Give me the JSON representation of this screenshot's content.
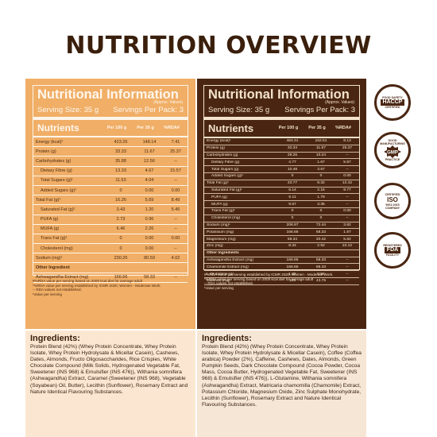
{
  "title": "NUTRITION OVERVIEW",
  "left": {
    "heading": "Nutritional Information",
    "approx": "(Approx. Values)",
    "serving_size": "Serving Size: 35 g",
    "servings": "Servings Per Pack: 3",
    "nutrients_label": "Nutrients",
    "col1": "Per 100 g",
    "col2": "Per 35 g",
    "col3": "%RDA#",
    "rows": [
      {
        "label": "Energy (kcal)¹",
        "v1": "423.26",
        "v2": "148.14",
        "v3": "7.41",
        "indent": false,
        "section": false
      },
      {
        "label": "Protein (g)",
        "v1": "33.33",
        "v2": "11.67",
        "v3": "25.37",
        "indent": false,
        "section": false
      },
      {
        "label": "Carbohydrates (g)",
        "v1": "35.88",
        "v2": "12.56",
        "v3": "--",
        "indent": false,
        "section": false
      },
      {
        "label": "Dietary Fibre (g)",
        "v1": "13.33",
        "v2": "4.67",
        "v3": "15.57",
        "indent": true,
        "section": false
      },
      {
        "label": "Total Sugars (g)¹",
        "v1": "11.53",
        "v2": "4.04",
        "v3": "--",
        "indent": true,
        "section": false
      },
      {
        "label": "Added Sugars (g)¹",
        "v1": "0",
        "v2": "0.00",
        "v3": "0.00",
        "indent": true,
        "section": false
      },
      {
        "label": "Total Fat (g)¹",
        "v1": "16.26",
        "v2": "5.69",
        "v3": "8.49",
        "indent": false,
        "section": false
      },
      {
        "label": "Saturated Fat (g)¹",
        "v1": "3.43",
        "v2": "1.20",
        "v3": "5.45",
        "indent": true,
        "section": false
      },
      {
        "label": "PUFA (g)",
        "v1": "2.73",
        "v2": "0.96",
        "v3": "--",
        "indent": true,
        "section": false
      },
      {
        "label": "MUFA (g)",
        "v1": "6.46",
        "v2": "2.26",
        "v3": "--",
        "indent": true,
        "section": false
      },
      {
        "label": "Trans Fat (g)¹",
        "v1": "0",
        "v2": "0.00",
        "v3": "0.00",
        "indent": true,
        "section": false
      },
      {
        "label": "Cholesterol (mg)",
        "v1": "0",
        "v2": "0.00",
        "v3": "--",
        "indent": true,
        "section": false
      },
      {
        "label": "Sodium (mg)¹",
        "v1": "230.26",
        "v2": "80.59",
        "v3": "4.02",
        "indent": false,
        "section": false
      },
      {
        "label": "Other Ingredient",
        "v1": "",
        "v2": "",
        "v3": "",
        "indent": false,
        "section": true
      },
      {
        "label": "Ashwagandha Extract (mg)",
        "v1": "166.66",
        "v2": "58.33",
        "v3": "--",
        "indent": false,
        "section": false
      }
    ],
    "notes": [
      "#%RDA value per serving based on 2000 kcal diet for average adult",
      "*%RDA value per serving established by ICMR 2020, Women - Moderate Work.",
      "-- RDA values not established.",
      "¹Value per serving"
    ],
    "ingredients_heading": "Ingredients:",
    "ingredients_text": "Protein Blend (42%) (Whey Protein Concentrate, Whey Protein Isolate, Whey Protein Hydrolysate & Micellar Casein), Cashews, Dates, Almonds, Fructo Oligosaccharides, Rice Crispies, White Chocolate Compound (Milk Solids, Hydrogenated Vegetable Fat, Sweetener (INS 968) & Emulsifier (INS 476)), Withania somnifera (Ashwagandha) Extract, Caramel (Sweetener (INS 968), Vegetable (Soyabean) Oil, Butter), Lecithin (Sunflower), Rosemary Extract and Nature Identical Flavouring Substances."
  },
  "right": {
    "heading": "Nutritional Information",
    "approx": "(Approx. Values)",
    "serving_size": "Serving Size: 35 g",
    "servings": "Servings Per Pack: 3",
    "nutrients_label": "Nutrients",
    "col1": "Per 100 g",
    "col2": "Per 35 g",
    "col3": "%RDA#",
    "rows": [
      {
        "label": "Energy (kcal)¹",
        "v1": "464.31",
        "v2": "162.51",
        "v3": "8.13",
        "indent": false,
        "section": false
      },
      {
        "label": "Protein (g)",
        "v1": "33.34",
        "v2": "11.67",
        "v3": "25.37",
        "indent": false,
        "section": false
      },
      {
        "label": "Carbohydrates (g)",
        "v1": "29.25",
        "v2": "10.24",
        "v3": "--",
        "indent": false,
        "section": false
      },
      {
        "label": "Dietary Fibre (g)",
        "v1": "4.77",
        "v2": "1.67",
        "v3": "5.57",
        "indent": true,
        "section": false
      },
      {
        "label": "Total Sugars (g)",
        "v1": "10.48",
        "v2": "3.67",
        "v3": "--",
        "indent": true,
        "section": false
      },
      {
        "label": "Added Sugars (g)¹",
        "v1": "0",
        "v2": "0",
        "v3": "0.00",
        "indent": true,
        "section": false
      },
      {
        "label": "Total Fat (g)¹",
        "v1": "23.77",
        "v2": "8.32",
        "v3": "12.42",
        "indent": false,
        "section": false
      },
      {
        "label": "Saturated Fat (g)¹",
        "v1": "6.14",
        "v2": "2.15",
        "v3": "9.77",
        "indent": true,
        "section": false
      },
      {
        "label": "PUFA (g)",
        "v1": "5.11",
        "v2": "1.79",
        "v3": "--",
        "indent": true,
        "section": false
      },
      {
        "label": "MUFA (g)",
        "v1": "9.57",
        "v2": "3.35",
        "v3": "--",
        "indent": true,
        "section": false
      },
      {
        "label": "Trans Fat (g)¹",
        "v1": "0",
        "v2": "0",
        "v3": "0.00",
        "indent": true,
        "section": false
      },
      {
        "label": "Cholesterol (mg)",
        "v1": "0",
        "v2": "0",
        "v3": "--",
        "indent": true,
        "section": false
      },
      {
        "label": "Sodium (mg)¹",
        "v1": "206.97",
        "v2": "72.44",
        "v3": "3.62",
        "indent": false,
        "section": false
      },
      {
        "label": "Potassium (mg)",
        "v1": "166.66",
        "v2": "58.33",
        "v3": "1.67",
        "indent": false,
        "section": false
      },
      {
        "label": "Magnesium (mg)",
        "v1": "58.34",
        "v2": "20.42",
        "v3": "5.62",
        "indent": false,
        "section": false
      },
      {
        "label": "Zinc (mg)",
        "v1": "8.34",
        "v2": "2.92",
        "v3": "22.12",
        "indent": false,
        "section": false
      },
      {
        "label": "Other Ingredients",
        "v1": "",
        "v2": "",
        "v3": "",
        "indent": false,
        "section": true
      },
      {
        "label": "Ashwagandha Extract (mg)",
        "v1": "166.65",
        "v2": "58.33",
        "v3": "--",
        "indent": false,
        "section": false
      },
      {
        "label": "Chamomile Extract (mg)",
        "v1": "166.65",
        "v2": "58.33",
        "v3": "--",
        "indent": false,
        "section": false
      },
      {
        "label": "L-Glutamine (g)",
        "v1": "1.65",
        "v2": "0.58",
        "v3": "--",
        "indent": false,
        "section": false
      },
      {
        "label": "Caffeine (mg)",
        "v1": "125",
        "v2": "43.75",
        "v3": "--",
        "indent": false,
        "section": false
      }
    ],
    "notes": [
      "#%RDA value per serving established by ICMR 2020, Women - Moderate Work.",
      "*%RDA value per serving based on 2000 kcal diet for average adult",
      "-- RDA values not established.",
      "¹Value per serving"
    ],
    "ingredients_heading": "Ingredients:",
    "ingredients_text": "Protein Blend (42%) (Whey Protein Concentrate, Whey Protein Isolate, Whey Protein Hydrolysate & Micellar Casein), Coffee (Coffea arabica) Powder (2%), Caffeine, Cashews, Dates, Almonds, Green Pumpkin Seeds, Dark Chocolate Compound (Cocoa Powder, Cocoa Mass, Cocoa Butter, Hydrogenated Vegetable Fat, Sweetener (INS 968) & Emulsifier (INS 476)), L-Glutamine, Withania somnifera (Ashwagandha) Extract, Matricaria chamomilla (Chamomile) Extract, Potassium Chloride, Magnesium Oxide, Zinc Sulphate Monohydrate, Lecithin (Sunflower), Rosemary Extract and Nature Identical Flavouring Substances."
  },
  "badges": [
    {
      "top": "FOOD SAFETY",
      "main": "HACCP",
      "bottom": "CERTIFIED",
      "icon": "haccp-icon"
    },
    {
      "top": "GOOD MANUFACTURING",
      "main": "GMP",
      "bottom": "PRACTICE",
      "icon": "gmp-icon"
    },
    {
      "top": "CERTIFIED",
      "main": "ISO",
      "sub": "9001:2015",
      "bottom": "COMPANY",
      "icon": "iso-icon"
    },
    {
      "top": "REGISTERED",
      "main": "FDA",
      "bottom": "FACILITY",
      "icon": "fda-icon"
    }
  ],
  "colors": {
    "orange_panel": "#f0ae66",
    "brown_panel": "#4a2612",
    "title": "#3a1f0c"
  }
}
